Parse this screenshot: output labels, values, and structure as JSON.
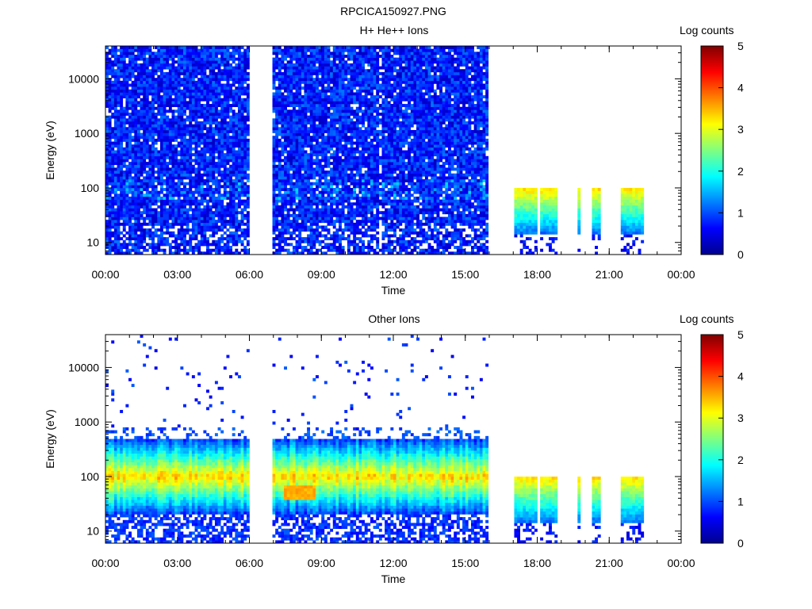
{
  "figure_title": "RPCICA150927.PNG",
  "chart_data": [
    {
      "type": "heatmap",
      "title": "H+ He++ Ions",
      "xlabel": "Time",
      "ylabel": "Energy (eV)",
      "colorbar_label": "Log counts",
      "colorbar_ticks": [
        "0",
        "1",
        "2",
        "3",
        "4",
        "5"
      ],
      "colorbar_range": [
        0,
        5
      ],
      "x_ticks": [
        "00:00",
        "03:00",
        "06:00",
        "09:00",
        "12:00",
        "15:00",
        "18:00",
        "21:00",
        "00:00"
      ],
      "x_range_hours": [
        0,
        24
      ],
      "y_scale": "log",
      "y_range": [
        6,
        40000
      ],
      "y_ticks": [
        "10",
        "100",
        "1000",
        "10000"
      ],
      "data_coverage_hours": [
        [
          0.0,
          6.0
        ],
        [
          7.0,
          16.0
        ],
        [
          17.0,
          18.0
        ],
        [
          18.1,
          18.9
        ],
        [
          19.7,
          19.8
        ],
        [
          20.3,
          20.6
        ],
        [
          21.5,
          22.5
        ]
      ],
      "low_energy_band": {
        "hours_from": 17.0,
        "energy_range_eV": [
          15,
          100
        ],
        "log_counts": [
          2.5,
          3.3
        ]
      },
      "background_log_counts": [
        0.3,
        1.2
      ],
      "vertical_noise_stripe_hour": 11.5,
      "grid": false,
      "legend": "colorbar-right"
    },
    {
      "type": "heatmap",
      "title": "Other Ions",
      "xlabel": "Time",
      "ylabel": "Energy (eV)",
      "colorbar_label": "Log counts",
      "colorbar_ticks": [
        "0",
        "1",
        "2",
        "3",
        "4",
        "5"
      ],
      "colorbar_range": [
        0,
        5
      ],
      "x_ticks": [
        "00:00",
        "03:00",
        "06:00",
        "09:00",
        "12:00",
        "15:00",
        "18:00",
        "21:00",
        "00:00"
      ],
      "x_range_hours": [
        0,
        24
      ],
      "y_scale": "log",
      "y_range": [
        6,
        40000
      ],
      "y_ticks": [
        "10",
        "100",
        "1000",
        "10000"
      ],
      "data_coverage_hours": [
        [
          0.0,
          6.0
        ],
        [
          7.0,
          16.0
        ],
        [
          17.0,
          18.0
        ],
        [
          18.1,
          18.9
        ],
        [
          19.7,
          19.8
        ],
        [
          20.3,
          20.6
        ],
        [
          21.5,
          22.5
        ]
      ],
      "main_band": {
        "energy_range_eV": [
          20,
          500
        ],
        "peak_energy_eV": 100,
        "peak_log_counts": 3.3
      },
      "dip_event": {
        "hours": [
          7.5,
          8.8
        ],
        "energy_eV": 50,
        "log_counts": 3.7
      },
      "low_energy_band": {
        "hours_from": 17.0,
        "energy_range_eV": [
          15,
          100
        ],
        "log_counts": [
          2.5,
          3.3
        ]
      },
      "grid": false,
      "legend": "colorbar-right"
    }
  ]
}
